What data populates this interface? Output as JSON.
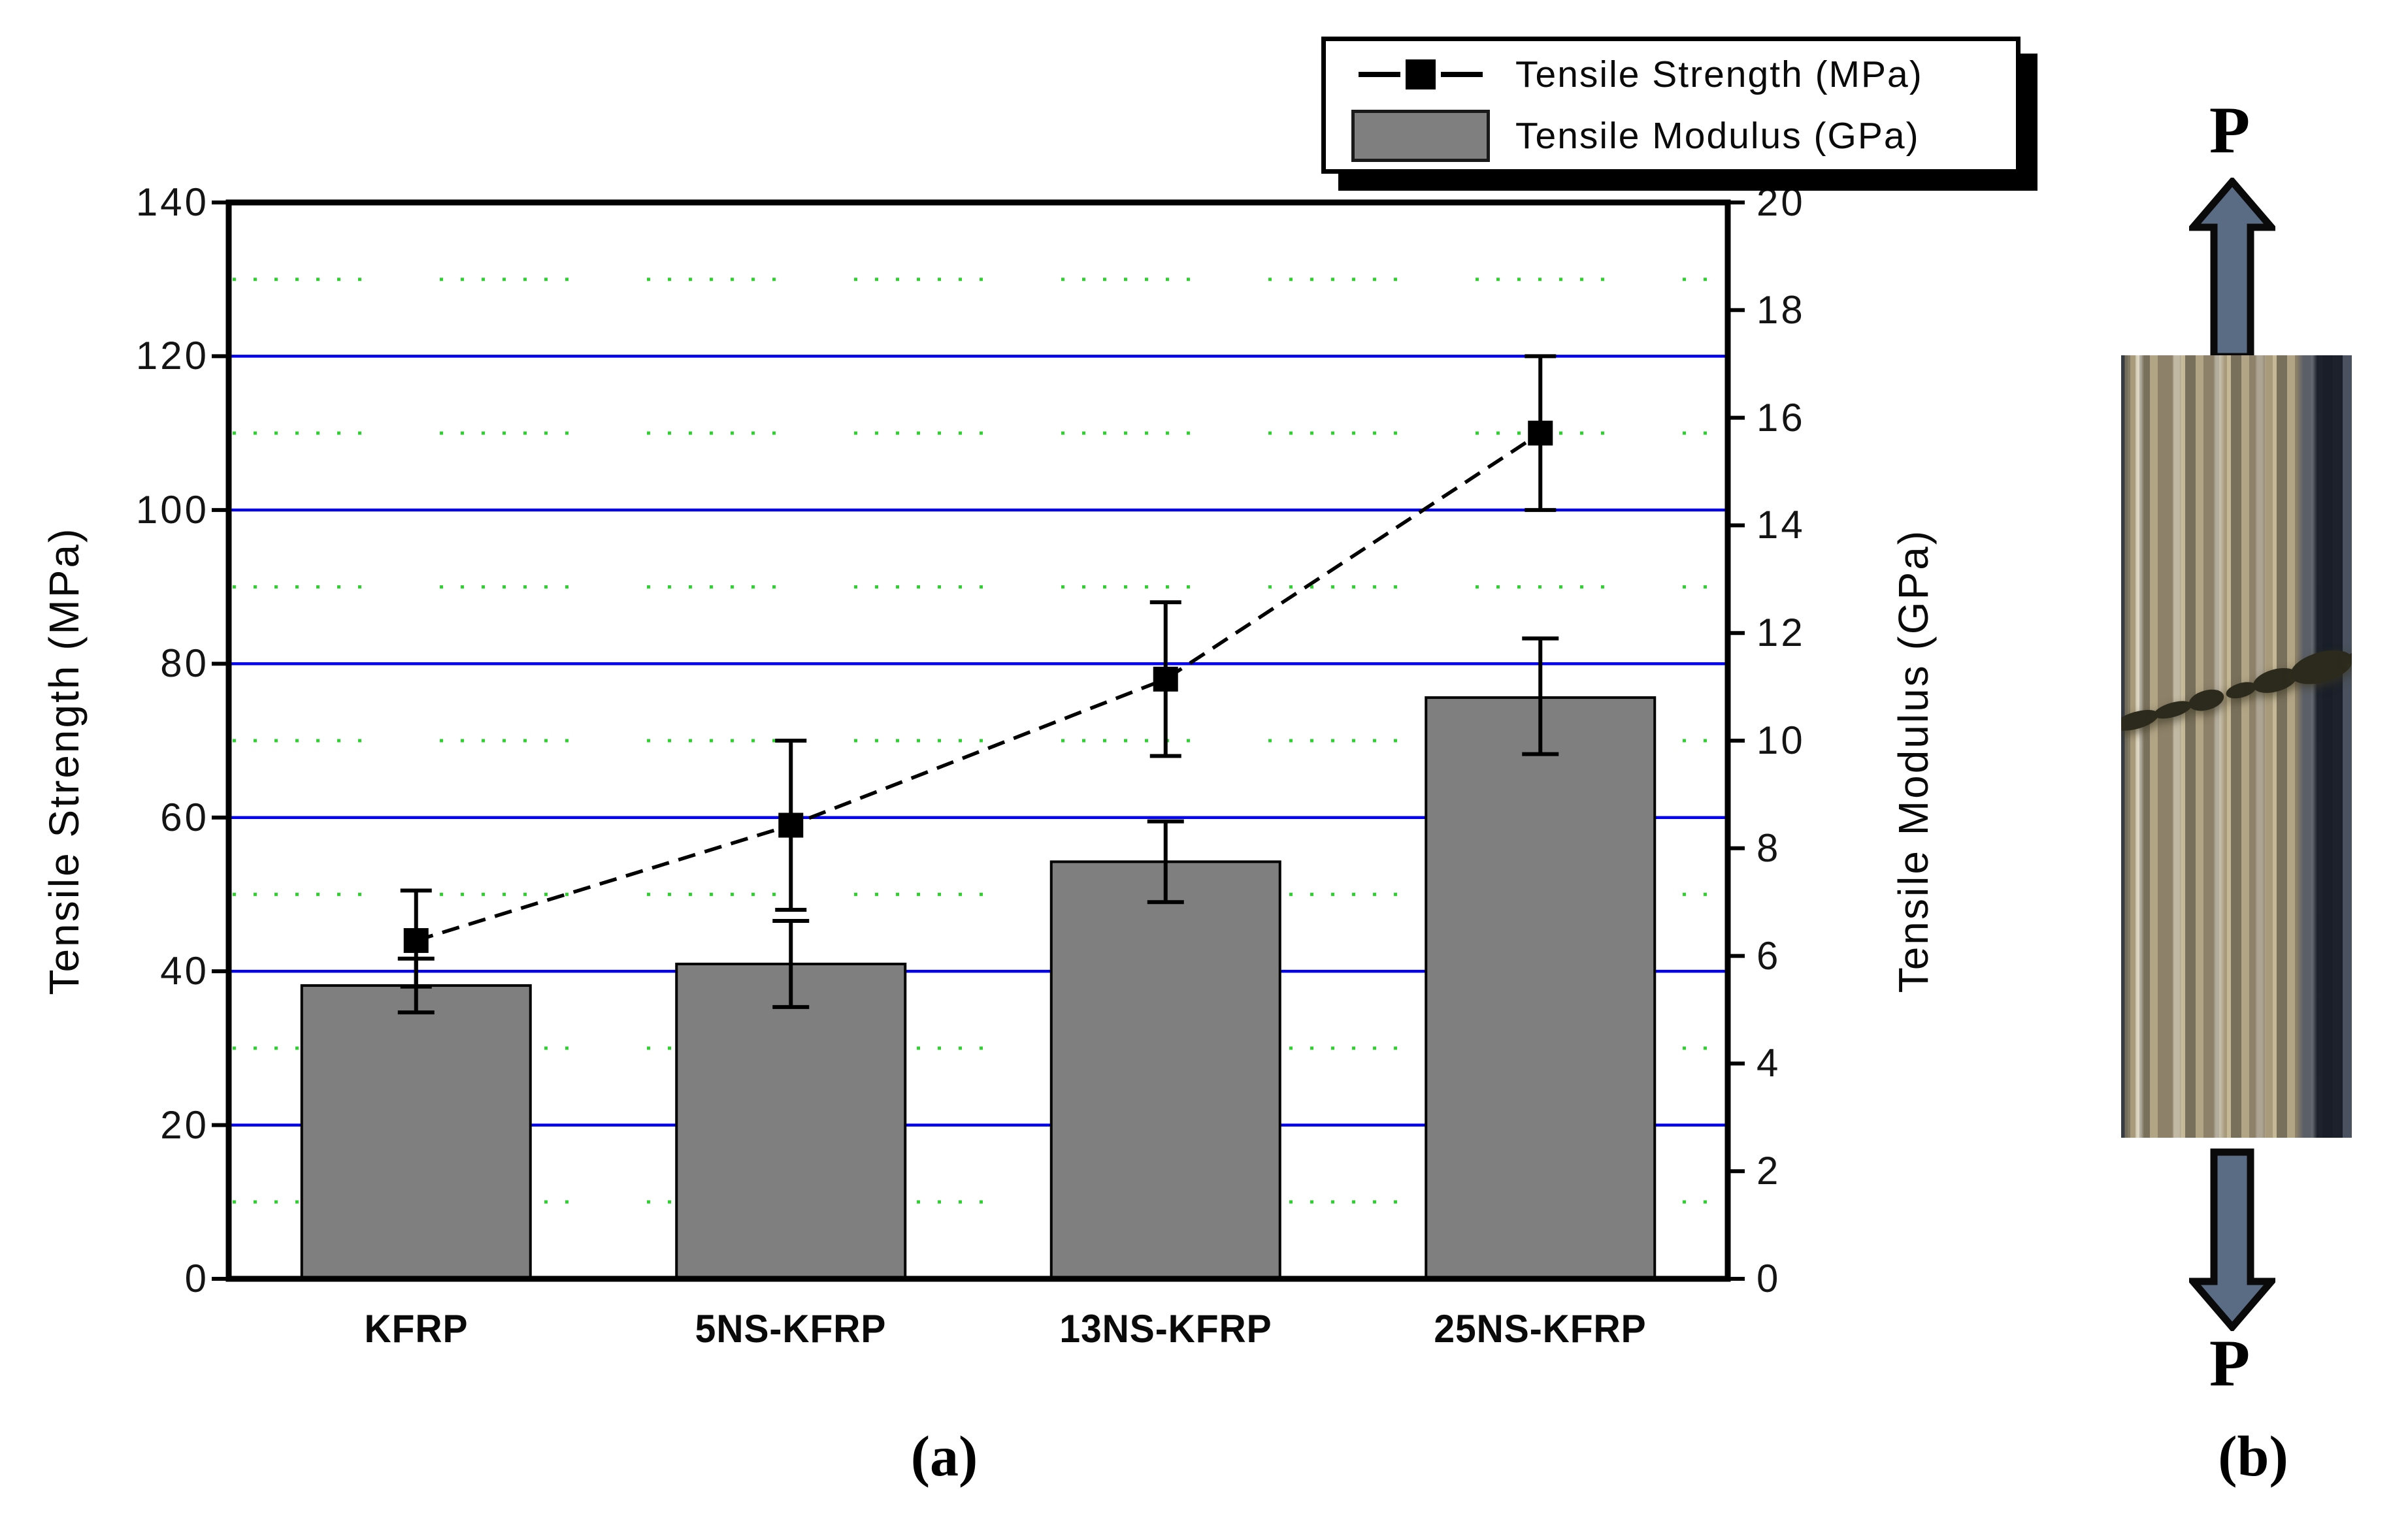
{
  "figure": {
    "panel_a_caption": "(a)",
    "panel_b_caption": "(b)"
  },
  "legend": {
    "items": [
      {
        "label": "Tensile Strength (MPa)",
        "marker": "line-square-marker"
      },
      {
        "label": "Tensile Modulus (GPa)",
        "marker": "gray-bar-swatch"
      }
    ]
  },
  "chart_data": {
    "type": "bar+line dual-axis",
    "title": "",
    "categories": [
      "KFRP",
      "5NS-KFRP",
      "13NS-KFRP",
      "25NS-KFRP"
    ],
    "left_axis": {
      "label": "Tensile Strength (MPa)",
      "min": 0,
      "max": 140,
      "major_step": 20,
      "minor_step": 10,
      "tick_labels": [
        "0",
        "20",
        "40",
        "60",
        "80",
        "100",
        "120",
        "140"
      ]
    },
    "right_axis": {
      "label": "Tensile Modulus (GPa)",
      "min": 0,
      "max": 20,
      "major_step": 2,
      "tick_labels": [
        "0",
        "2",
        "4",
        "6",
        "8",
        "10",
        "12",
        "14",
        "16",
        "18",
        "20"
      ]
    },
    "series": [
      {
        "name": "Tensile Strength (MPa)",
        "type": "line",
        "axis": "left",
        "color": "#000000",
        "marker": "filled-square",
        "line_style": "dashed",
        "values": [
          44,
          59,
          78,
          110
        ],
        "err_up_caps": [
          50.5,
          70,
          88,
          120
        ],
        "err_down_caps": [
          38,
          48,
          68,
          100
        ]
      },
      {
        "name": "Tensile Modulus (GPa)",
        "type": "bar",
        "axis": "right",
        "color": "#7f7f7f",
        "values": [
          5.45,
          5.85,
          7.75,
          10.8
        ],
        "err_up_caps": [
          5.95,
          6.65,
          8.5,
          11.9
        ],
        "err_down_caps": [
          4.95,
          5.05,
          7.0,
          9.75
        ]
      }
    ],
    "gridlines": {
      "major": {
        "color": "#0000ee",
        "style": "solid",
        "at": [
          20,
          40,
          60,
          80,
          100,
          120
        ]
      },
      "minor": {
        "color": "#2ed22e",
        "style": "dotted",
        "at": [
          10,
          30,
          50,
          70,
          90,
          110,
          130
        ]
      }
    },
    "legend_position": "top-right",
    "frame_color": "#000000"
  },
  "panel_b": {
    "load_label_top": "P",
    "load_label_bottom": "P"
  }
}
